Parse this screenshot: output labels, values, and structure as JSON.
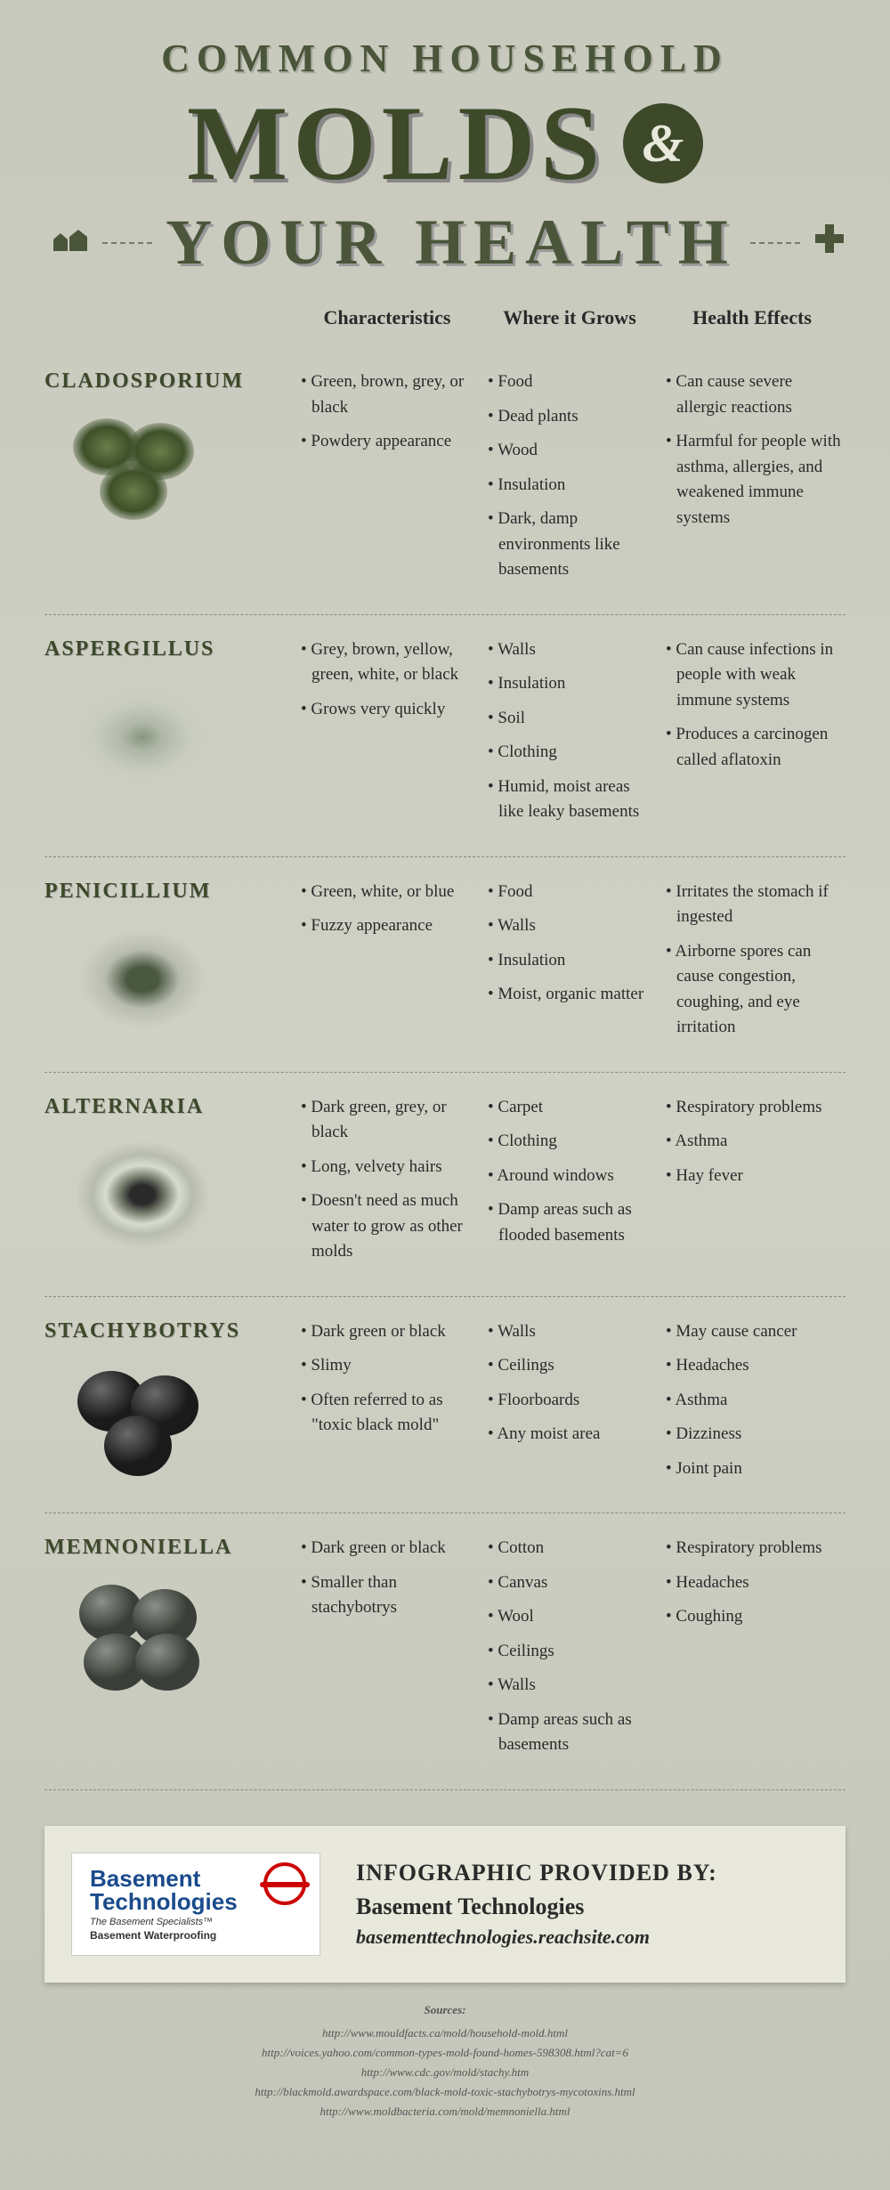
{
  "title": {
    "line1": "COMMON HOUSEHOLD",
    "line2": "MOLDS",
    "amp": "&",
    "line3": "YOUR HEALTH"
  },
  "columns": {
    "c1": "",
    "c2": "Characteristics",
    "c3": "Where it Grows",
    "c4": "Health Effects"
  },
  "molds": [
    {
      "name": "CLADOSPORIUM",
      "characteristics": [
        "Green, brown, grey, or black",
        "Powdery appearance"
      ],
      "grows": [
        "Food",
        "Dead plants",
        "Wood",
        "Insulation",
        "Dark, damp environments like basements"
      ],
      "effects": [
        "Can cause severe allergic reactions",
        "Harmful for people with asthma, allergies, and weakened immune systems"
      ],
      "svg": "cladosporium",
      "colors": {
        "fill": "#3d5028",
        "glow": "#6b7d4a"
      }
    },
    {
      "name": "ASPERGILLUS",
      "characteristics": [
        "Grey, brown, yellow, green, white, or black",
        "Grows very quickly"
      ],
      "grows": [
        "Walls",
        "Insulation",
        "Soil",
        "Clothing",
        "Humid, moist areas like leaky basements"
      ],
      "effects": [
        "Can cause infections in people with weak immune systems",
        "Produces a carcinogen called aflatoxin"
      ],
      "svg": "aspergillus",
      "colors": {
        "fill": "#c8ccc0",
        "center": "#8a9580"
      }
    },
    {
      "name": "PENICILLIUM",
      "characteristics": [
        "Green, white, or blue",
        "Fuzzy appearance"
      ],
      "grows": [
        "Food",
        "Walls",
        "Insulation",
        "Moist, organic matter"
      ],
      "effects": [
        "Irritates the stomach if ingested",
        "Airborne spores can cause congestion, coughing, and eye irritation"
      ],
      "svg": "penicillium",
      "colors": {
        "fill": "#b8bcb0",
        "center": "#4a5840"
      }
    },
    {
      "name": "ALTERNARIA",
      "characteristics": [
        "Dark green, grey, or black",
        "Long, velvety hairs",
        "Doesn't need as much water to grow as other molds"
      ],
      "grows": [
        "Carpet",
        "Clothing",
        "Around windows",
        "Damp areas such as flooded basements"
      ],
      "effects": [
        "Respiratory problems",
        "Asthma",
        "Hay fever"
      ],
      "svg": "alternaria",
      "colors": {
        "fill": "#d8dcd0",
        "ring": "#7a8070",
        "center": "#2a2a2a"
      }
    },
    {
      "name": "STACHYBOTRYS",
      "characteristics": [
        "Dark green or black",
        "Slimy",
        "Often referred to as \"toxic black mold\""
      ],
      "grows": [
        "Walls",
        "Ceilings",
        "Floorboards",
        "Any moist area"
      ],
      "effects": [
        "May cause cancer",
        "Headaches",
        "Asthma",
        "Dizziness",
        "Joint pain"
      ],
      "svg": "stachybotrys",
      "colors": {
        "fill": "#3a3a3a",
        "shine": "#6a6a6a"
      }
    },
    {
      "name": "MEMNONIELLA",
      "characteristics": [
        "Dark green or black",
        "Smaller than stachybotrys"
      ],
      "grows": [
        "Cotton",
        "Canvas",
        "Wool",
        "Ceilings",
        "Walls",
        "Damp areas such as basements"
      ],
      "effects": [
        "Respiratory problems",
        "Headaches",
        "Coughing"
      ],
      "svg": "memnoniella",
      "colors": {
        "fill": "#5a6058",
        "shine": "#8a908a"
      }
    }
  ],
  "footer": {
    "logo_main1": "Basement",
    "logo_main2": "Technologies",
    "logo_sub1": "The Basement Specialists™",
    "logo_sub2": "Basement Waterproofing",
    "provided_label": "INFOGRAPHIC PROVIDED BY:",
    "provided_name": "Basement Technologies",
    "provided_url": "basementtechnologies.reachsite.com"
  },
  "sources": {
    "label": "Sources:",
    "urls": [
      "http://www.mouldfacts.ca/mold/household-mold.html",
      "http://voices.yahoo.com/common-types-mold-found-homes-598308.html?cat=6",
      "http://www.cdc.gov/mold/stachy.htm",
      "http://blackmold.awardspace.com/black-mold-toxic-stachybotrys-mycotoxins.html",
      "http://www.moldbacteria.com/mold/memnoniella.html"
    ]
  },
  "styling": {
    "background_gradient": [
      "#c8c9bd",
      "#d0d1c5",
      "#c5c6ba"
    ],
    "title_color": "#4a5539",
    "title_dark": "#3d4929",
    "text_color": "#2a2a2a",
    "logo_blue": "#1a4b8c",
    "logo_red": "#c00"
  }
}
